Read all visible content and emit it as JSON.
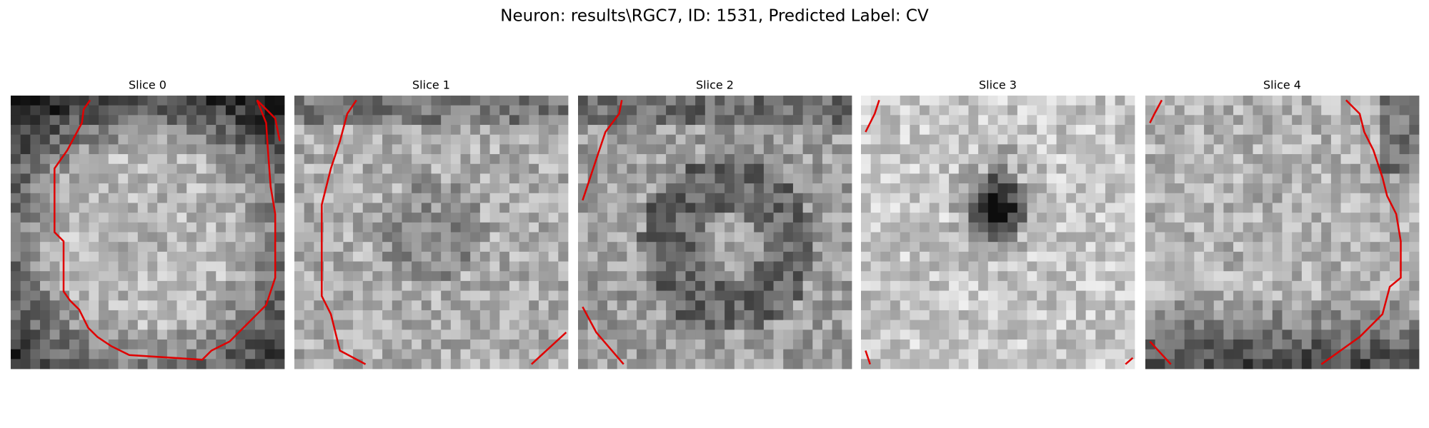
{
  "title": "Neuron: results\\RGC7, ID: 1531, Predicted Label: CV",
  "panels": [
    {
      "label": "Slice 0"
    },
    {
      "label": "Slice 1"
    },
    {
      "label": "Slice 2"
    },
    {
      "label": "Slice 3"
    },
    {
      "label": "Slice 4"
    }
  ]
}
